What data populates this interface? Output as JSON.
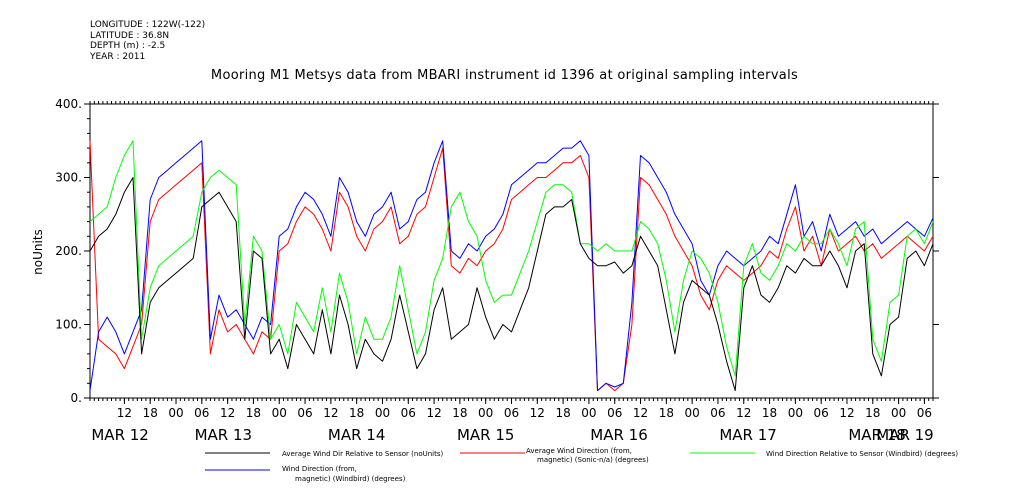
{
  "meta": {
    "longitude": "LONGITUDE : 122W(-122)",
    "latitude": "LATITUDE : 36.8N",
    "depth": "DEPTH (m) : -2.5",
    "year": "YEAR : 2011"
  },
  "chart_data": {
    "type": "line",
    "title": "Mooring M1 Metsys data from MBARI instrument id 1396 at original sampling intervals",
    "ylabel": "noUnits",
    "xlabel": "",
    "ylim": [
      0,
      400
    ],
    "y_ticks": [
      "0.",
      "100.",
      "200.",
      "300.",
      "400."
    ],
    "y_tick_values": [
      0,
      100,
      200,
      300,
      400
    ],
    "xlim_hours": [
      0,
      196
    ],
    "hour_tick_labels": [
      "12",
      "18",
      "00",
      "06",
      "12",
      "18",
      "00",
      "06",
      "12",
      "18",
      "00",
      "06",
      "12",
      "18",
      "00",
      "06",
      "12",
      "18",
      "00",
      "06",
      "12",
      "18",
      "00",
      "06",
      "12",
      "18",
      "00",
      "06",
      "12",
      "18",
      "00",
      "06"
    ],
    "hour_tick_positions": [
      8,
      14,
      20,
      26,
      32,
      38,
      44,
      50,
      56,
      62,
      68,
      74,
      80,
      86,
      92,
      98,
      104,
      110,
      116,
      122,
      128,
      134,
      140,
      146,
      152,
      158,
      164,
      170,
      176,
      182,
      188,
      194
    ],
    "day_labels": [
      "MAR 12",
      "MAR 13",
      "MAR 14",
      "MAR 15",
      "MAR 16",
      "MAR 17",
      "MAR 18",
      "MAR 19"
    ],
    "day_label_positions": [
      7,
      31,
      62,
      92,
      123,
      153,
      183,
      202
    ],
    "grid": false,
    "legend_position": "bottom",
    "series": [
      {
        "name": "Average Wind Dir Relative to Sensor (noUnits)",
        "color": "#000000",
        "x": [
          0,
          2,
          4,
          6,
          8,
          10,
          12,
          14,
          16,
          18,
          20,
          22,
          24,
          26,
          28,
          30,
          32,
          34,
          36,
          38,
          40,
          42,
          44,
          46,
          48,
          50,
          52,
          54,
          56,
          58,
          60,
          62,
          64,
          66,
          68,
          70,
          72,
          74,
          76,
          78,
          80,
          82,
          84,
          86,
          88,
          90,
          92,
          94,
          96,
          98,
          100,
          102,
          104,
          106,
          108,
          110,
          112,
          114,
          116,
          118,
          120,
          122,
          124,
          126,
          128,
          130,
          132,
          134,
          136,
          138,
          140,
          142,
          144,
          146,
          148,
          150,
          152,
          154,
          156,
          158,
          160,
          162,
          164,
          166,
          168,
          170,
          172,
          174,
          176,
          178,
          180,
          182,
          184,
          186,
          188,
          190,
          192,
          194,
          196
        ],
        "values": [
          200,
          220,
          230,
          250,
          280,
          300,
          60,
          130,
          150,
          160,
          170,
          180,
          190,
          260,
          270,
          280,
          260,
          240,
          80,
          200,
          190,
          60,
          80,
          40,
          100,
          80,
          60,
          120,
          60,
          140,
          100,
          40,
          80,
          60,
          50,
          80,
          140,
          90,
          40,
          60,
          120,
          150,
          80,
          90,
          100,
          150,
          110,
          80,
          100,
          90,
          120,
          150,
          200,
          250,
          260,
          260,
          270,
          210,
          190,
          180,
          180,
          185,
          170,
          180,
          220,
          200,
          180,
          120,
          60,
          130,
          160,
          150,
          140,
          100,
          50,
          10,
          150,
          180,
          140,
          130,
          150,
          180,
          170,
          190,
          180,
          180,
          200,
          180,
          150,
          200,
          210,
          60,
          30,
          100,
          110,
          190,
          200,
          180,
          210
        ]
      },
      {
        "name": "Average Wind Direction (from, magnetic) (Sonic-n/a) (degrees)",
        "color": "#ff0000",
        "x": [
          0,
          2,
          4,
          6,
          8,
          10,
          12,
          14,
          16,
          18,
          20,
          22,
          24,
          26,
          28,
          30,
          32,
          34,
          36,
          38,
          40,
          42,
          44,
          46,
          48,
          50,
          52,
          54,
          56,
          58,
          60,
          62,
          64,
          66,
          68,
          70,
          72,
          74,
          76,
          78,
          80,
          82,
          84,
          86,
          88,
          90,
          92,
          94,
          96,
          98,
          100,
          102,
          104,
          106,
          108,
          110,
          112,
          114,
          116,
          118,
          120,
          122,
          124,
          126,
          128,
          130,
          132,
          134,
          136,
          138,
          140,
          142,
          144,
          146,
          148,
          150,
          152,
          154,
          156,
          158,
          160,
          162,
          164,
          166,
          168,
          170,
          172,
          174,
          176,
          178,
          180,
          182,
          184,
          186,
          188,
          190,
          192,
          194,
          196
        ],
        "values": [
          350,
          80,
          70,
          60,
          40,
          70,
          100,
          240,
          270,
          280,
          290,
          300,
          310,
          320,
          60,
          120,
          90,
          100,
          80,
          60,
          90,
          80,
          200,
          210,
          240,
          260,
          250,
          230,
          200,
          280,
          260,
          220,
          200,
          230,
          240,
          260,
          210,
          220,
          250,
          260,
          300,
          340,
          180,
          170,
          190,
          180,
          200,
          210,
          230,
          270,
          280,
          290,
          300,
          300,
          310,
          320,
          320,
          330,
          300,
          10,
          20,
          10,
          20,
          100,
          300,
          290,
          270,
          250,
          220,
          200,
          180,
          140,
          120,
          160,
          180,
          170,
          160,
          170,
          180,
          200,
          190,
          230,
          260,
          200,
          220,
          180,
          230,
          200,
          210,
          220,
          200,
          210,
          190,
          200,
          210,
          220,
          210,
          200,
          220
        ]
      },
      {
        "name": "Wind Direction Relative to Sensor (Windbird) (degrees)",
        "color": "#00ff00",
        "x": [
          0,
          2,
          4,
          6,
          8,
          10,
          12,
          14,
          16,
          18,
          20,
          22,
          24,
          26,
          28,
          30,
          32,
          34,
          36,
          38,
          40,
          42,
          44,
          46,
          48,
          50,
          52,
          54,
          56,
          58,
          60,
          62,
          64,
          66,
          68,
          70,
          72,
          74,
          76,
          78,
          80,
          82,
          84,
          86,
          88,
          90,
          92,
          94,
          96,
          98,
          100,
          102,
          104,
          106,
          108,
          110,
          112,
          114,
          116,
          118,
          120,
          122,
          124,
          126,
          128,
          130,
          132,
          134,
          136,
          138,
          140,
          142,
          144,
          146,
          148,
          150,
          152,
          154,
          156,
          158,
          160,
          162,
          164,
          166,
          168,
          170,
          172,
          174,
          176,
          178,
          180,
          182,
          184,
          186,
          188,
          190,
          192,
          194,
          196
        ],
        "values": [
          240,
          250,
          260,
          300,
          330,
          350,
          80,
          150,
          180,
          190,
          200,
          210,
          220,
          280,
          300,
          310,
          300,
          290,
          100,
          220,
          200,
          80,
          100,
          60,
          130,
          110,
          90,
          150,
          90,
          170,
          130,
          60,
          110,
          80,
          80,
          110,
          180,
          120,
          60,
          90,
          160,
          190,
          260,
          280,
          240,
          220,
          160,
          130,
          140,
          140,
          170,
          200,
          240,
          280,
          290,
          290,
          280,
          210,
          210,
          200,
          210,
          200,
          200,
          200,
          240,
          230,
          210,
          160,
          90,
          160,
          200,
          190,
          170,
          130,
          70,
          30,
          180,
          210,
          170,
          160,
          180,
          210,
          200,
          220,
          210,
          210,
          230,
          210,
          180,
          230,
          240,
          80,
          50,
          130,
          140,
          220,
          230,
          210,
          240
        ]
      },
      {
        "name": "Wind Direction (from, magnetic) (Windbird) (degrees)",
        "color": "#0000ff",
        "x": [
          0,
          2,
          4,
          6,
          8,
          10,
          12,
          14,
          16,
          18,
          20,
          22,
          24,
          26,
          28,
          30,
          32,
          34,
          36,
          38,
          40,
          42,
          44,
          46,
          48,
          50,
          52,
          54,
          56,
          58,
          60,
          62,
          64,
          66,
          68,
          70,
          72,
          74,
          76,
          78,
          80,
          82,
          84,
          86,
          88,
          90,
          92,
          94,
          96,
          98,
          100,
          102,
          104,
          106,
          108,
          110,
          112,
          114,
          116,
          118,
          120,
          122,
          124,
          126,
          128,
          130,
          132,
          134,
          136,
          138,
          140,
          142,
          144,
          146,
          148,
          150,
          152,
          154,
          156,
          158,
          160,
          162,
          164,
          166,
          168,
          170,
          172,
          174,
          176,
          178,
          180,
          182,
          184,
          186,
          188,
          190,
          192,
          194,
          196
        ],
        "values": [
          10,
          90,
          110,
          90,
          60,
          90,
          120,
          270,
          300,
          310,
          320,
          330,
          340,
          350,
          80,
          140,
          110,
          120,
          100,
          80,
          110,
          100,
          220,
          230,
          260,
          280,
          270,
          250,
          220,
          300,
          280,
          240,
          220,
          250,
          260,
          280,
          230,
          240,
          270,
          280,
          320,
          350,
          200,
          190,
          210,
          200,
          220,
          230,
          250,
          290,
          300,
          310,
          320,
          320,
          330,
          340,
          340,
          350,
          330,
          10,
          20,
          15,
          20,
          130,
          330,
          320,
          300,
          280,
          250,
          230,
          210,
          160,
          140,
          180,
          200,
          190,
          180,
          190,
          200,
          220,
          210,
          250,
          290,
          220,
          240,
          200,
          250,
          220,
          230,
          240,
          220,
          230,
          210,
          220,
          230,
          240,
          230,
          220,
          245
        ]
      }
    ]
  },
  "legend": {
    "item1": "Average Wind Dir Relative to Sensor (noUnits)",
    "item2a": "Average Wind Direction (from,",
    "item2b": "magnetic) (Sonic-n/a) (degrees)",
    "item3": "Wind Direction Relative to Sensor (Windbird) (degrees)",
    "item4a": "Wind Direction (from,",
    "item4b": "magnetic) (Windbird) (degrees)"
  }
}
